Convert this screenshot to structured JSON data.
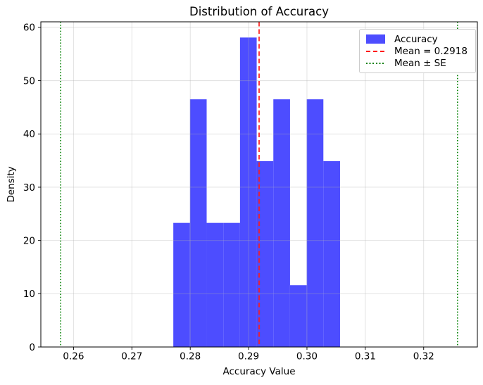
{
  "chart_data": {
    "type": "bar",
    "subtype": "histogram",
    "title": "Distribution of Accuracy",
    "xlabel": "Accuracy Value",
    "ylabel": "Density",
    "bin_start": 0.2771,
    "bin_width": 0.002857,
    "densities": [
      23.3,
      46.5,
      23.3,
      23.3,
      58.1,
      34.9,
      46.5,
      11.6,
      46.5,
      34.9
    ],
    "mean": 0.2918,
    "mean_minus_se": 0.2578,
    "mean_plus_se": 0.3258,
    "xlim": [
      0.2544,
      0.3292
    ],
    "ylim": [
      0,
      61.05
    ],
    "xticks": [
      0.26,
      0.27,
      0.28,
      0.29,
      0.3,
      0.31,
      0.32
    ],
    "xtick_labels": [
      "0.26",
      "0.27",
      "0.28",
      "0.29",
      "0.30",
      "0.31",
      "0.32"
    ],
    "yticks": [
      0,
      10,
      20,
      30,
      40,
      50,
      60
    ],
    "ytick_labels": [
      "0",
      "10",
      "20",
      "30",
      "40",
      "50",
      "60"
    ],
    "grid": true,
    "legend": {
      "position": "upper right",
      "entries": [
        {
          "label": "Accuracy",
          "swatch": "patch",
          "color": "#4d4dff"
        },
        {
          "label": "Mean = 0.2918",
          "swatch": "dashed-line",
          "color": "#ff1a1a"
        },
        {
          "label": "Mean ± SE",
          "swatch": "dotted-line",
          "color": "#008000"
        }
      ]
    },
    "colors": {
      "bar": "#4d4dff",
      "mean_line": "#ff1a1a",
      "se_line": "#008000",
      "grid": "#b0b0b0",
      "axis": "#000000"
    }
  }
}
